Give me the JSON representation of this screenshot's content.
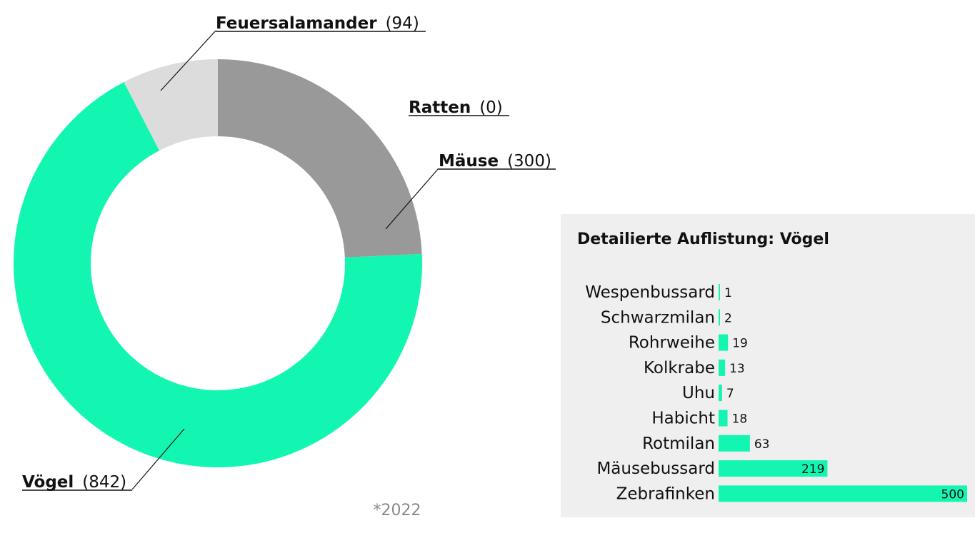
{
  "chart_data": [
    {
      "type": "pie",
      "categories": [
        "Mäuse",
        "Ratten",
        "Vögel",
        "Feuersalamander"
      ],
      "values": [
        300,
        0,
        842,
        94
      ],
      "colors": [
        "#999999",
        "#999999",
        "#13f6b2",
        "#dcdcdc"
      ],
      "donut": true,
      "start_angle_deg": 0,
      "direction": "clockwise"
    },
    {
      "type": "bar",
      "orientation": "horizontal",
      "title": "Detailierte Auflistung: Vögel",
      "categories": [
        "Wespenbussard",
        "Schwarzmilan",
        "Rohrweihe",
        "Kolkrabe",
        "Uhu",
        "Habicht",
        "Rotmilan",
        "Mäusebussard",
        "Zebrafinken"
      ],
      "values": [
        1,
        2,
        19,
        13,
        7,
        18,
        63,
        219,
        500
      ],
      "bar_color": "#13f6b2",
      "panel_color": "#efefef"
    }
  ],
  "footnote": "*2022"
}
